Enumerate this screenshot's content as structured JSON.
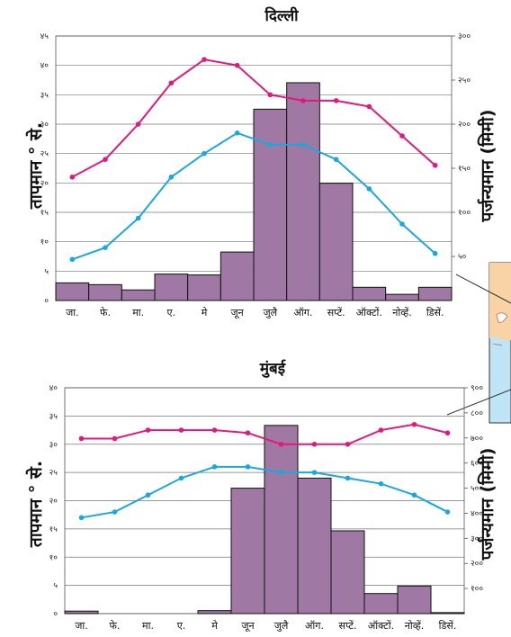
{
  "colors": {
    "max_temp": "#e0197d",
    "min_temp": "#1aa7df",
    "rain_bar": "#a078a4",
    "map_land": "#f9d3a6",
    "map_sea": "#bfe4f6"
  },
  "chart_data": [
    {
      "type": "bar+line",
      "title": "दिल्ली",
      "ylabel": "तापमान ° से.",
      "y2label": "पर्जन्यमान (मिमी)",
      "categories": [
        "जा.",
        "फे.",
        "मा.",
        "ए.",
        "मे",
        "जून",
        "जुलै",
        "ऑग.",
        "सप्टें.",
        "ऑक्टों.",
        "नोव्हें.",
        "डिसें."
      ],
      "ylim": [
        0,
        45
      ],
      "yticks": [
        "०",
        "५",
        "१०",
        "१५",
        "२०",
        "२५",
        "३०",
        "३५",
        "४०",
        "४५"
      ],
      "y2lim": [
        0,
        300
      ],
      "y2ticks": [
        "५०",
        "१००",
        "१५०",
        "२००",
        "२५०",
        "३००"
      ],
      "grid": true,
      "series": [
        {
          "kind": "bar",
          "axis": "right",
          "values": [
            20,
            18,
            12,
            30,
            29,
            55,
            217,
            247,
            133,
            15,
            7,
            15
          ]
        },
        {
          "kind": "line",
          "axis": "left",
          "color": "#e0197d",
          "values": [
            21,
            24,
            30,
            37,
            41,
            40,
            35,
            34,
            34,
            33,
            28,
            23
          ]
        },
        {
          "kind": "line",
          "axis": "left",
          "color": "#1aa7df",
          "values": [
            7,
            9,
            14,
            21,
            25,
            28.5,
            26.5,
            26.5,
            24,
            19,
            13,
            8
          ]
        }
      ]
    },
    {
      "type": "bar+line",
      "title": "मुंबई",
      "ylabel": "तापमान ° से.",
      "y2label": "पर्जन्यमान (मिमी)",
      "categories": [
        "जा.",
        "फे.",
        "मा.",
        "ए.",
        "मे",
        "जून",
        "जुलै",
        "ऑग.",
        "सप्टें.",
        "ऑक्टों.",
        "नोव्हें.",
        "डिसें."
      ],
      "ylim": [
        0,
        40
      ],
      "yticks": [
        "०",
        "५",
        "१०",
        "१५",
        "२०",
        "२५",
        "३०",
        "३५",
        "४०"
      ],
      "y2lim": [
        0,
        900
      ],
      "y2ticks": [
        "१००",
        "२००",
        "३००",
        "४००",
        "५००",
        "६००",
        "७००",
        "८००",
        "९००"
      ],
      "grid": true,
      "series": [
        {
          "kind": "bar",
          "axis": "right",
          "values": [
            10,
            0,
            0,
            0,
            12,
            500,
            750,
            540,
            330,
            80,
            110,
            4
          ]
        },
        {
          "kind": "line",
          "axis": "left",
          "color": "#e0197d",
          "values": [
            31,
            31,
            32.5,
            32.5,
            32.5,
            32,
            30,
            30,
            30,
            32.5,
            33.5,
            32
          ]
        },
        {
          "kind": "line",
          "axis": "left",
          "color": "#1aa7df",
          "values": [
            17,
            18,
            21,
            24,
            26,
            26,
            25,
            25,
            24,
            23,
            21,
            18
          ]
        }
      ]
    }
  ]
}
